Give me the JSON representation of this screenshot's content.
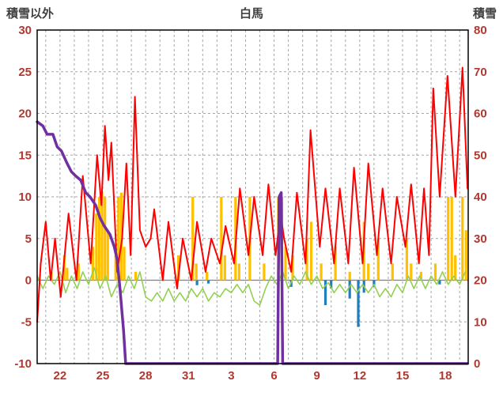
{
  "header": {
    "left_axis_title": "積雪以外",
    "chart_title": "白馬",
    "right_axis_title": "積雪"
  },
  "colors": {
    "gridline": "#A6A6A6",
    "zero_line": "#808080",
    "border": "#000000",
    "axis_tick": "#B13830",
    "header_text": "#3F3F3F",
    "temperature_line": "#FF0000",
    "snow_line": "#7030A0",
    "precip_bar": "#FFC000",
    "negative_bar": "#1F7EC2",
    "green_line": "#92D050"
  },
  "chart_data": {
    "type": "line",
    "title": "白馬",
    "left_axis": {
      "label": "積雪以外",
      "min": -10,
      "max": 30,
      "tick_step": 5,
      "ticks": [
        30,
        25,
        20,
        15,
        10,
        5,
        0,
        -5,
        -10
      ]
    },
    "right_axis": {
      "label": "積雪",
      "min": 0,
      "max": 80,
      "tick_step": 10,
      "ticks": [
        80,
        70,
        60,
        50,
        40,
        30,
        20,
        10,
        0
      ]
    },
    "x_axis": {
      "start_day": 20.4,
      "end_day": 50.6,
      "tick_positions": [
        22,
        25,
        28,
        31,
        34,
        37,
        40,
        43,
        46,
        49
      ],
      "tick_labels": [
        "22",
        "25",
        "28",
        "31",
        "3",
        "6",
        "9",
        "12",
        "15",
        "18"
      ],
      "grid_every_day": true
    },
    "series": [
      {
        "name": "precipitation",
        "type": "bar",
        "axis": "left",
        "color": "#FFC000",
        "bar_width_days": 0.18,
        "points": [
          [
            21.4,
            1
          ],
          [
            22.3,
            3
          ],
          [
            22.5,
            1.5
          ],
          [
            23.3,
            2
          ],
          [
            24.3,
            4
          ],
          [
            24.55,
            8
          ],
          [
            24.75,
            10
          ],
          [
            24.95,
            10.5
          ],
          [
            25.15,
            10
          ],
          [
            25.35,
            6
          ],
          [
            25.9,
            3
          ],
          [
            26.1,
            10
          ],
          [
            26.3,
            10.5
          ],
          [
            26.5,
            4
          ],
          [
            27.3,
            1
          ],
          [
            30.3,
            3
          ],
          [
            31.3,
            10
          ],
          [
            31.55,
            2
          ],
          [
            32.3,
            1
          ],
          [
            33.3,
            10
          ],
          [
            33.55,
            3
          ],
          [
            34.3,
            10
          ],
          [
            34.55,
            2
          ],
          [
            35.3,
            10
          ],
          [
            36.3,
            2
          ],
          [
            37.3,
            10
          ],
          [
            37.55,
            10
          ],
          [
            37.8,
            4
          ],
          [
            38.3,
            3
          ],
          [
            39.3,
            5
          ],
          [
            39.6,
            7
          ],
          [
            40.3,
            2
          ],
          [
            41.3,
            4
          ],
          [
            42.3,
            1
          ],
          [
            43.3,
            7
          ],
          [
            43.6,
            2
          ],
          [
            44.3,
            5
          ],
          [
            45.3,
            2
          ],
          [
            46.3,
            5
          ],
          [
            46.6,
            2
          ],
          [
            47.3,
            1
          ],
          [
            48.3,
            2
          ],
          [
            49.2,
            10
          ],
          [
            49.45,
            10
          ],
          [
            49.7,
            3
          ],
          [
            50.2,
            10
          ],
          [
            50.45,
            6
          ]
        ]
      },
      {
        "name": "negative-bars",
        "type": "bar",
        "axis": "left",
        "color": "#1F7EC2",
        "bar_width_days": 0.18,
        "points": [
          [
            31.6,
            -0.6
          ],
          [
            32.4,
            -0.4
          ],
          [
            38.2,
            -0.8
          ],
          [
            40.6,
            -3
          ],
          [
            41.0,
            -1
          ],
          [
            42.3,
            -2.2
          ],
          [
            42.9,
            -5.6
          ],
          [
            43.3,
            -1.5
          ],
          [
            44.0,
            -0.8
          ],
          [
            48.6,
            -0.5
          ]
        ]
      },
      {
        "name": "green-series",
        "type": "line",
        "axis": "left",
        "color": "#92D050",
        "width": 1.6,
        "points": [
          [
            20.4,
            0.5
          ],
          [
            20.8,
            -1
          ],
          [
            21.2,
            0.5
          ],
          [
            21.6,
            -0.5
          ],
          [
            22.0,
            1
          ],
          [
            22.4,
            -1.5
          ],
          [
            22.8,
            0.5
          ],
          [
            23.2,
            -1
          ],
          [
            23.6,
            1
          ],
          [
            24.0,
            -0.5
          ],
          [
            24.4,
            1.5
          ],
          [
            24.8,
            -1
          ],
          [
            25.2,
            0.5
          ],
          [
            25.6,
            -2
          ],
          [
            26.0,
            -0.5
          ],
          [
            26.4,
            -1.5
          ],
          [
            26.8,
            0.5
          ],
          [
            27.2,
            -1
          ],
          [
            27.6,
            1
          ],
          [
            28.0,
            -2
          ],
          [
            28.4,
            -2.5
          ],
          [
            28.8,
            -1.5
          ],
          [
            29.2,
            -2.5
          ],
          [
            29.6,
            -1
          ],
          [
            30.0,
            -2.5
          ],
          [
            30.4,
            -1.5
          ],
          [
            30.8,
            -2.5
          ],
          [
            31.2,
            -1
          ],
          [
            31.6,
            -2
          ],
          [
            32.0,
            -1
          ],
          [
            32.4,
            -2.5
          ],
          [
            32.8,
            -1.5
          ],
          [
            33.2,
            -2
          ],
          [
            33.6,
            -1
          ],
          [
            34.0,
            -1.5
          ],
          [
            34.4,
            -0.5
          ],
          [
            34.8,
            -1.5
          ],
          [
            35.2,
            -0.5
          ],
          [
            35.6,
            -2.5
          ],
          [
            36.0,
            -3
          ],
          [
            36.4,
            -1
          ],
          [
            36.8,
            0.5
          ],
          [
            37.2,
            -0.5
          ],
          [
            37.6,
            1
          ],
          [
            38.0,
            -1
          ],
          [
            38.4,
            0.5
          ],
          [
            38.8,
            -0.5
          ],
          [
            39.2,
            1
          ],
          [
            39.6,
            -0.5
          ],
          [
            40.0,
            0.5
          ],
          [
            40.4,
            -1
          ],
          [
            40.8,
            -0.3
          ],
          [
            41.2,
            -1.5
          ],
          [
            41.6,
            -0.5
          ],
          [
            42.0,
            -1.5
          ],
          [
            42.4,
            -0.5
          ],
          [
            42.8,
            -1.5
          ],
          [
            43.2,
            -0.5
          ],
          [
            43.6,
            -1.5
          ],
          [
            44.0,
            -0.5
          ],
          [
            44.4,
            -2
          ],
          [
            44.8,
            -1
          ],
          [
            45.2,
            -2
          ],
          [
            45.6,
            -0.5
          ],
          [
            46.0,
            -1.5
          ],
          [
            46.4,
            0.5
          ],
          [
            46.8,
            -1
          ],
          [
            47.2,
            0.5
          ],
          [
            47.6,
            -1
          ],
          [
            48.0,
            0.5
          ],
          [
            48.4,
            -0.5
          ],
          [
            48.8,
            1
          ],
          [
            49.2,
            -0.5
          ],
          [
            49.6,
            0.5
          ],
          [
            50.0,
            -0.5
          ],
          [
            50.4,
            1
          ]
        ]
      },
      {
        "name": "temperature",
        "type": "line",
        "axis": "left",
        "color": "#FF0000",
        "width": 2,
        "points": [
          [
            20.4,
            -5
          ],
          [
            20.65,
            2
          ],
          [
            21.0,
            7
          ],
          [
            21.35,
            0
          ],
          [
            21.65,
            5
          ],
          [
            22.05,
            -2
          ],
          [
            22.6,
            8
          ],
          [
            23.15,
            0
          ],
          [
            23.6,
            12.5
          ],
          [
            24.15,
            2
          ],
          [
            24.6,
            15
          ],
          [
            24.9,
            9
          ],
          [
            25.15,
            18.5
          ],
          [
            25.4,
            12
          ],
          [
            25.6,
            16.5
          ],
          [
            26.0,
            1
          ],
          [
            26.35,
            5
          ],
          [
            26.65,
            14
          ],
          [
            26.95,
            3
          ],
          [
            27.25,
            22
          ],
          [
            27.6,
            6
          ],
          [
            28.0,
            4
          ],
          [
            28.35,
            5
          ],
          [
            28.6,
            8.5
          ],
          [
            29.2,
            0
          ],
          [
            29.6,
            7
          ],
          [
            30.2,
            -1
          ],
          [
            30.6,
            5
          ],
          [
            31.2,
            0
          ],
          [
            31.6,
            7
          ],
          [
            32.2,
            1
          ],
          [
            32.6,
            5
          ],
          [
            33.2,
            2
          ],
          [
            33.6,
            6.5
          ],
          [
            34.2,
            2
          ],
          [
            34.6,
            11
          ],
          [
            35.2,
            3
          ],
          [
            35.6,
            10
          ],
          [
            36.2,
            3
          ],
          [
            36.6,
            11.5
          ],
          [
            37.1,
            3
          ],
          [
            37.45,
            8
          ],
          [
            37.7,
            5
          ],
          [
            38.2,
            1
          ],
          [
            38.6,
            10.5
          ],
          [
            39.2,
            2
          ],
          [
            39.55,
            18
          ],
          [
            40.2,
            4
          ],
          [
            40.6,
            11
          ],
          [
            41.2,
            2
          ],
          [
            41.6,
            11
          ],
          [
            42.2,
            2
          ],
          [
            42.6,
            13.5
          ],
          [
            43.2,
            2
          ],
          [
            43.6,
            14
          ],
          [
            44.2,
            3
          ],
          [
            44.6,
            11
          ],
          [
            45.2,
            2
          ],
          [
            45.6,
            10
          ],
          [
            46.2,
            4
          ],
          [
            46.6,
            11.5
          ],
          [
            47.15,
            2
          ],
          [
            47.5,
            11
          ],
          [
            47.85,
            3
          ],
          [
            48.15,
            23
          ],
          [
            48.6,
            10
          ],
          [
            49.15,
            24.5
          ],
          [
            49.7,
            10
          ],
          [
            50.2,
            25.5
          ],
          [
            50.55,
            11
          ]
        ]
      },
      {
        "name": "snow-depth",
        "type": "line",
        "axis": "right",
        "color": "#7030A0",
        "width": 3.5,
        "points": [
          [
            20.4,
            58
          ],
          [
            20.8,
            57
          ],
          [
            21.1,
            55
          ],
          [
            21.5,
            55
          ],
          [
            21.8,
            52
          ],
          [
            22.1,
            51
          ],
          [
            22.5,
            48
          ],
          [
            22.8,
            46
          ],
          [
            23.1,
            45
          ],
          [
            23.45,
            44
          ],
          [
            23.8,
            41
          ],
          [
            24.1,
            40
          ],
          [
            24.5,
            38
          ],
          [
            24.8,
            35
          ],
          [
            25.1,
            33
          ],
          [
            25.5,
            31
          ],
          [
            25.8,
            28
          ],
          [
            26.0,
            25
          ],
          [
            26.2,
            18
          ],
          [
            26.45,
            8
          ],
          [
            26.6,
            0
          ],
          [
            37.25,
            0
          ],
          [
            37.35,
            40
          ],
          [
            37.5,
            41
          ],
          [
            37.6,
            0
          ],
          [
            50.55,
            0
          ]
        ]
      }
    ]
  }
}
